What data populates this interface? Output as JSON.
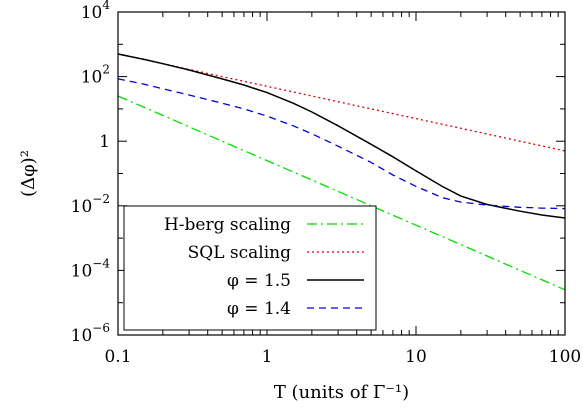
{
  "chart_data": {
    "type": "line",
    "title": "",
    "xlabel": "T (units of Γ⁻¹)",
    "ylabel": "(Δφ)²",
    "xscale": "log",
    "yscale": "log",
    "xlim": [
      0.1,
      100
    ],
    "ylim": [
      1e-06,
      10000
    ],
    "x_ticks": [
      {
        "value": 0.1,
        "label": "0.1"
      },
      {
        "value": 1,
        "label": "1"
      },
      {
        "value": 10,
        "label": "10"
      },
      {
        "value": 100,
        "label": "100"
      }
    ],
    "y_ticks": [
      {
        "value": 1e-06,
        "base": "10",
        "exp": "−6"
      },
      {
        "value": 0.0001,
        "base": "10",
        "exp": "−4"
      },
      {
        "value": 0.01,
        "base": "10",
        "exp": "−2"
      },
      {
        "value": 1,
        "base": "1",
        "exp": ""
      },
      {
        "value": 100,
        "base": "10",
        "exp": "2"
      },
      {
        "value": 10000,
        "base": "10",
        "exp": "4"
      }
    ],
    "legend_position": "bottom-left",
    "series": [
      {
        "name": "H-berg scaling",
        "color": "#00dd00",
        "dash": "dash-dot",
        "x": [
          0.1,
          0.2,
          0.5,
          1,
          2,
          5,
          10,
          20,
          50,
          100
        ],
        "y": [
          25,
          6.3,
          1.0,
          0.25,
          0.063,
          0.01,
          0.0025,
          0.00063,
          0.0001,
          2.5e-05
        ]
      },
      {
        "name": "SQL scaling",
        "color": "#dd0000",
        "dash": "dotted",
        "x": [
          0.1,
          0.2,
          0.5,
          1,
          2,
          5,
          10,
          20,
          50,
          100
        ],
        "y": [
          500,
          250,
          100,
          50,
          25,
          10,
          5,
          2.5,
          1.0,
          0.5
        ]
      },
      {
        "name": "φ = 1.5",
        "color": "#000000",
        "dash": "solid",
        "x": [
          0.1,
          0.15,
          0.2,
          0.3,
          0.5,
          0.7,
          1,
          1.5,
          2,
          3,
          5,
          7,
          10,
          15,
          20,
          30,
          50,
          70,
          100
        ],
        "y": [
          500,
          340,
          250,
          160,
          85,
          55,
          32,
          15,
          8,
          3,
          0.8,
          0.33,
          0.12,
          0.04,
          0.02,
          0.011,
          0.0068,
          0.0052,
          0.0042
        ]
      },
      {
        "name": "φ = 1.4",
        "color": "#0000dd",
        "dash": "dashed",
        "x": [
          0.1,
          0.15,
          0.2,
          0.3,
          0.5,
          0.7,
          1,
          1.5,
          2,
          3,
          5,
          7,
          10,
          15,
          20,
          30,
          50,
          70,
          100
        ],
        "y": [
          85,
          58,
          42,
          27,
          15,
          10,
          6,
          3,
          1.7,
          0.7,
          0.22,
          0.09,
          0.04,
          0.018,
          0.013,
          0.0105,
          0.009,
          0.0085,
          0.0082
        ]
      }
    ]
  }
}
